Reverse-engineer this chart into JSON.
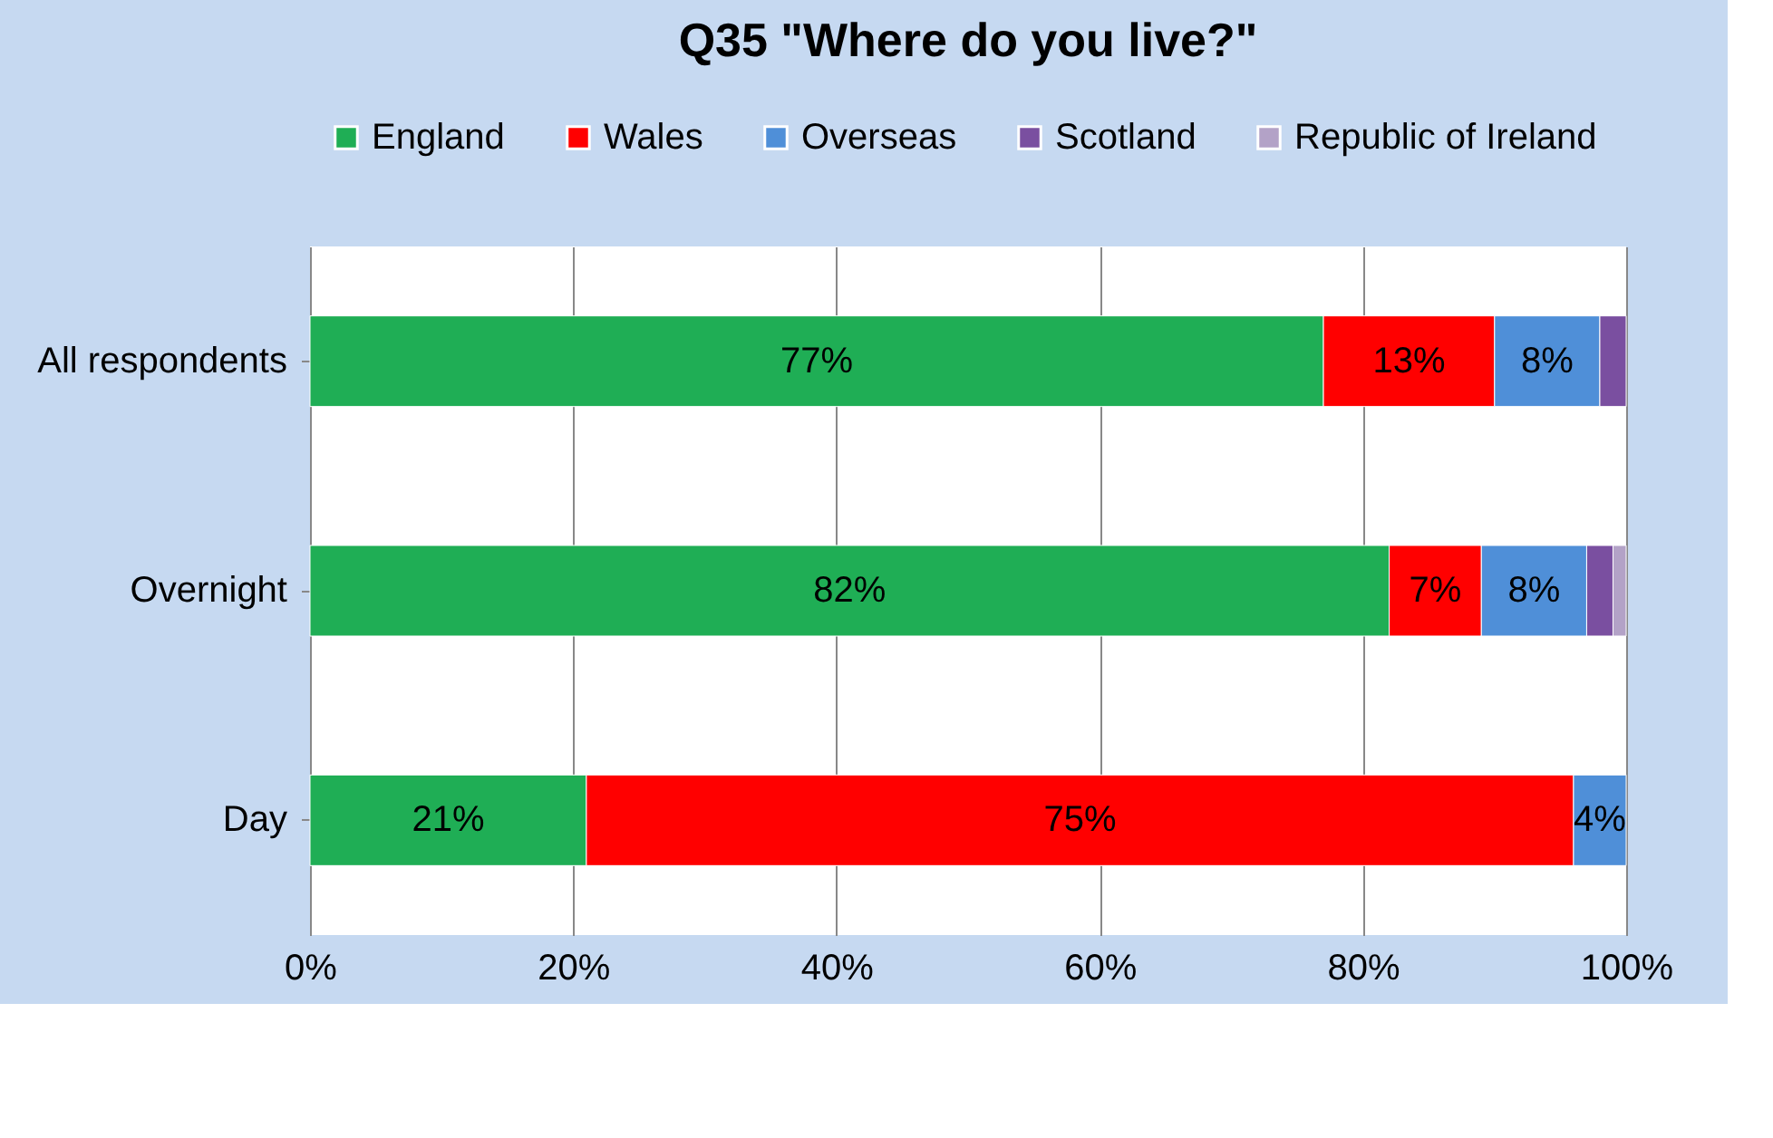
{
  "chart_data": {
    "type": "bar",
    "orientation": "horizontal",
    "stacked": true,
    "title": "Q35 \"Where do you live?\"",
    "categories": [
      "All respondents",
      "Overnight",
      "Day"
    ],
    "series": [
      {
        "name": "England",
        "color": "#1fae55",
        "values": [
          77,
          82,
          21
        ],
        "value_labels": [
          "77%",
          "82%",
          "21%"
        ]
      },
      {
        "name": "Wales",
        "color": "#ff0000",
        "values": [
          13,
          7,
          75
        ],
        "value_labels": [
          "13%",
          "7%",
          "75%"
        ]
      },
      {
        "name": "Overseas",
        "color": "#4f8fd8",
        "values": [
          8,
          8,
          4
        ],
        "value_labels": [
          "8%",
          "8%",
          "4%"
        ]
      },
      {
        "name": "Scotland",
        "color": "#7a4fa0",
        "values": [
          2,
          2,
          0
        ],
        "value_labels": [
          null,
          null,
          null
        ]
      },
      {
        "name": "Republic of Ireland",
        "color": "#b3a2c7",
        "values": [
          0,
          1,
          0
        ],
        "value_labels": [
          null,
          null,
          null
        ]
      }
    ],
    "xlim": [
      0,
      100
    ],
    "xticks": [
      {
        "value": 0,
        "label": "0%"
      },
      {
        "value": 20,
        "label": "20%"
      },
      {
        "value": 40,
        "label": "40%"
      },
      {
        "value": 60,
        "label": "60%"
      },
      {
        "value": 80,
        "label": "80%"
      },
      {
        "value": 100,
        "label": "100%"
      }
    ],
    "grid": "x",
    "legend": "top"
  }
}
